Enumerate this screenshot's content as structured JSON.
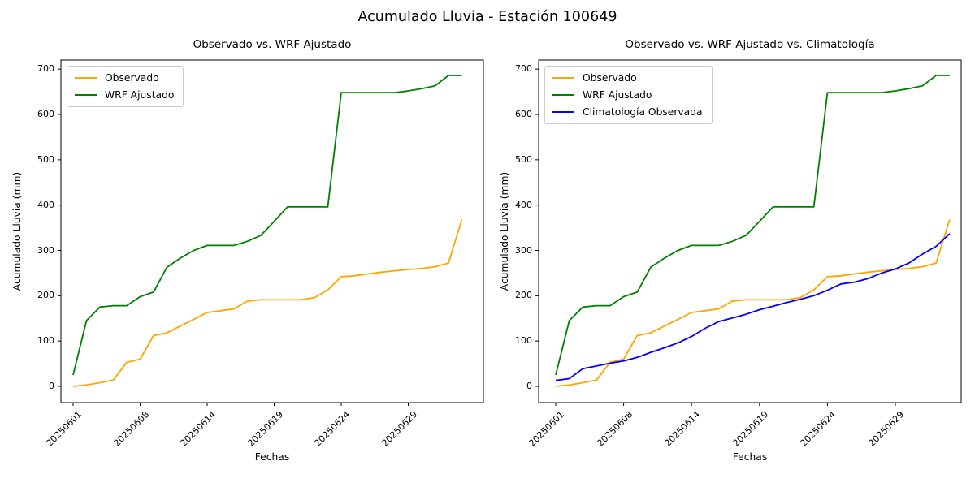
{
  "figure": {
    "title": "Acumulado Lluvia - Estación 100649",
    "background": "#ffffff",
    "text_color": "#000000",
    "spine_color": "#000000"
  },
  "colors": {
    "observado": "#FFA500",
    "wrf_ajustado": "#008000",
    "climatologia": "#0000FF"
  },
  "chart_data": [
    {
      "type": "line",
      "title": "Observado vs. WRF Ajustado",
      "xlabel": "Fechas",
      "ylabel": "Acumulado Lluvia (mm)",
      "ylim": [
        0,
        700
      ],
      "y_ticks": [
        0,
        100,
        200,
        300,
        400,
        500,
        600,
        700
      ],
      "grid": false,
      "legend_position": "upper left",
      "x_tick_labels": [
        "20250601",
        "20250608",
        "20250614",
        "20250619",
        "20250624",
        "20250629"
      ],
      "x_tick_indices": [
        0,
        5,
        10,
        15,
        20,
        25
      ],
      "n_points": 30,
      "series": [
        {
          "name": "Observado",
          "color": "#FFA500",
          "values": [
            0,
            3,
            8,
            14,
            53,
            60,
            112,
            118,
            133,
            148,
            163,
            167,
            171,
            188,
            191,
            191,
            191,
            191,
            196,
            213,
            242,
            244,
            248,
            252,
            255,
            258,
            260,
            264,
            272,
            368
          ]
        },
        {
          "name": "WRF Ajustado",
          "color": "#008000",
          "values": [
            25,
            145,
            175,
            178,
            178,
            198,
            208,
            263,
            283,
            300,
            311,
            311,
            311,
            320,
            333,
            364,
            396,
            396,
            396,
            396,
            648,
            648,
            648,
            648,
            648,
            652,
            657,
            663,
            686,
            686
          ]
        }
      ]
    },
    {
      "type": "line",
      "title": "Observado vs. WRF Ajustado vs. Climatología",
      "xlabel": "Fechas",
      "ylabel": "Acumulado Lluvia (mm)",
      "ylim": [
        0,
        700
      ],
      "y_ticks": [
        0,
        100,
        200,
        300,
        400,
        500,
        600,
        700
      ],
      "grid": false,
      "legend_position": "upper left",
      "x_tick_labels": [
        "20250601",
        "20250608",
        "20250614",
        "20250619",
        "20250624",
        "20250629"
      ],
      "x_tick_indices": [
        0,
        5,
        10,
        15,
        20,
        25
      ],
      "n_points": 30,
      "series": [
        {
          "name": "Observado",
          "color": "#FFA500",
          "values": [
            0,
            3,
            8,
            14,
            53,
            60,
            112,
            118,
            133,
            148,
            163,
            167,
            171,
            188,
            191,
            191,
            191,
            191,
            196,
            213,
            242,
            244,
            248,
            252,
            255,
            258,
            260,
            264,
            272,
            368
          ]
        },
        {
          "name": "WRF Ajustado",
          "color": "#008000",
          "values": [
            25,
            145,
            175,
            178,
            178,
            198,
            208,
            263,
            283,
            300,
            311,
            311,
            311,
            320,
            333,
            364,
            396,
            396,
            396,
            396,
            648,
            648,
            648,
            648,
            648,
            652,
            657,
            663,
            686,
            686
          ]
        },
        {
          "name": "Climatología Observada",
          "color": "#0000FF",
          "values": [
            13,
            17,
            39,
            45,
            51,
            56,
            64,
            75,
            85,
            96,
            110,
            128,
            143,
            151,
            159,
            169,
            177,
            185,
            192,
            200,
            212,
            226,
            230,
            238,
            250,
            259,
            272,
            292,
            309,
            337
          ]
        }
      ]
    }
  ]
}
